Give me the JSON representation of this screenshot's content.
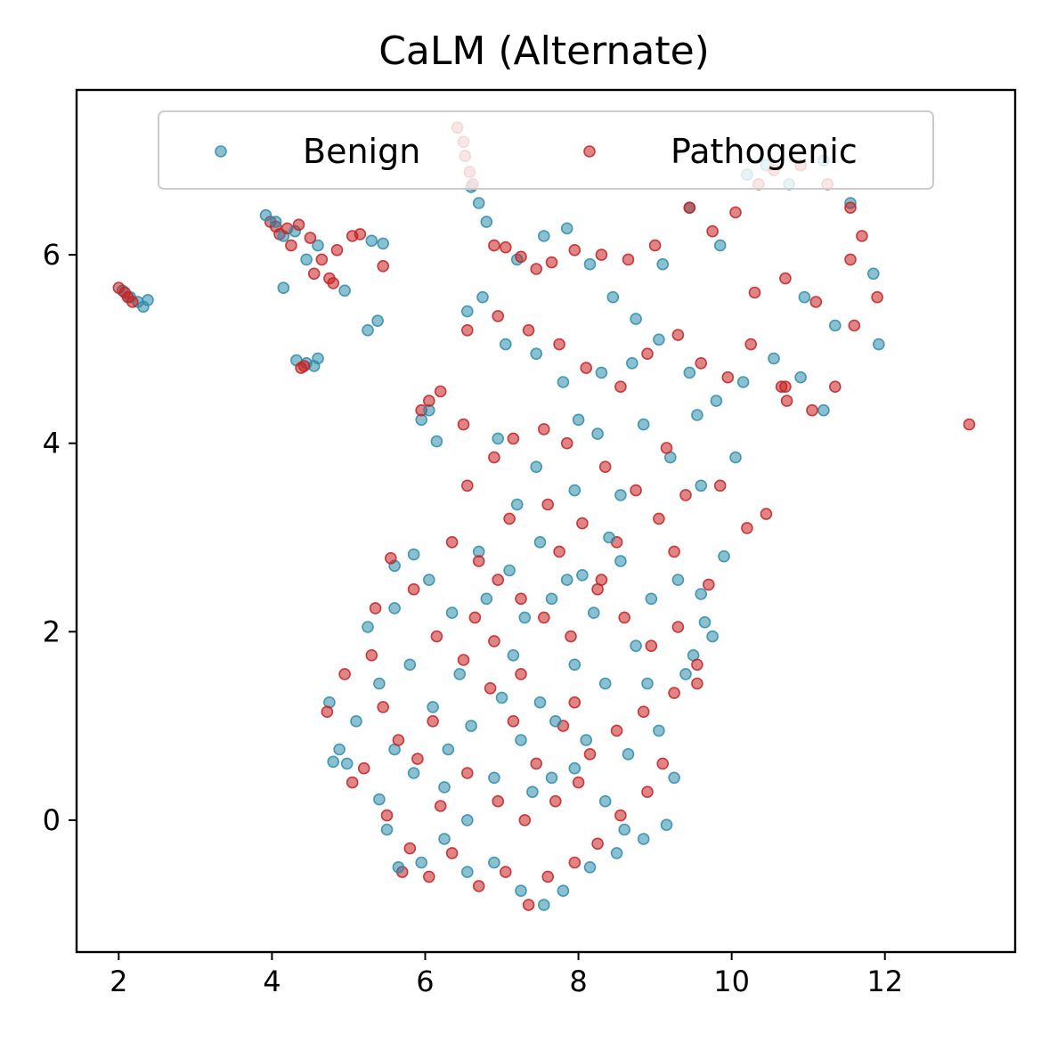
{
  "chart_data": {
    "type": "scatter",
    "title": "CaLM (Alternate)",
    "xlabel": "",
    "ylabel": "",
    "xlim": [
      1.45,
      13.7
    ],
    "ylim": [
      -1.4,
      7.75
    ],
    "xticks": [
      2,
      4,
      6,
      8,
      10,
      12
    ],
    "yticks": [
      0,
      2,
      4,
      6
    ],
    "grid": false,
    "legend_placement": "top-center",
    "series": [
      {
        "name": "Benign",
        "color": "#2b8cac",
        "points": [
          [
            2.05,
            5.62
          ],
          [
            2.15,
            5.55
          ],
          [
            2.25,
            5.5
          ],
          [
            2.32,
            5.45
          ],
          [
            2.38,
            5.52
          ],
          [
            3.92,
            6.42
          ],
          [
            4.05,
            6.35
          ],
          [
            4.15,
            6.2
          ],
          [
            4.3,
            6.25
          ],
          [
            4.45,
            5.95
          ],
          [
            4.6,
            6.1
          ],
          [
            4.15,
            5.65
          ],
          [
            4.95,
            5.62
          ],
          [
            5.3,
            6.15
          ],
          [
            5.25,
            5.2
          ],
          [
            5.38,
            5.3
          ],
          [
            5.45,
            6.12
          ],
          [
            4.32,
            4.88
          ],
          [
            4.45,
            4.85
          ],
          [
            4.6,
            4.9
          ],
          [
            4.55,
            4.82
          ],
          [
            5.95,
            4.25
          ],
          [
            6.05,
            4.35
          ],
          [
            6.15,
            4.02
          ],
          [
            6.6,
            6.72
          ],
          [
            6.7,
            6.55
          ],
          [
            6.8,
            6.35
          ],
          [
            6.55,
            5.4
          ],
          [
            6.75,
            5.55
          ],
          [
            7.2,
            5.95
          ],
          [
            7.55,
            6.2
          ],
          [
            7.85,
            6.28
          ],
          [
            8.15,
            5.9
          ],
          [
            8.45,
            5.55
          ],
          [
            8.75,
            5.32
          ],
          [
            9.1,
            5.9
          ],
          [
            9.45,
            6.5
          ],
          [
            9.85,
            6.1
          ],
          [
            10.2,
            6.85
          ],
          [
            10.45,
            6.95
          ],
          [
            10.75,
            6.75
          ],
          [
            11.2,
            7.0
          ],
          [
            11.55,
            6.55
          ],
          [
            11.85,
            5.8
          ],
          [
            11.92,
            5.05
          ],
          [
            11.35,
            5.25
          ],
          [
            10.95,
            5.55
          ],
          [
            7.05,
            5.05
          ],
          [
            7.45,
            4.95
          ],
          [
            7.8,
            4.65
          ],
          [
            8.0,
            4.25
          ],
          [
            8.3,
            4.75
          ],
          [
            8.7,
            4.85
          ],
          [
            9.05,
            5.1
          ],
          [
            9.45,
            4.75
          ],
          [
            9.8,
            4.45
          ],
          [
            10.15,
            4.65
          ],
          [
            10.55,
            4.9
          ],
          [
            10.9,
            4.7
          ],
          [
            11.2,
            4.35
          ],
          [
            9.2,
            3.85
          ],
          [
            9.6,
            3.55
          ],
          [
            10.05,
            3.85
          ],
          [
            8.55,
            3.45
          ],
          [
            7.95,
            3.5
          ],
          [
            7.2,
            3.35
          ],
          [
            6.95,
            4.05
          ],
          [
            7.45,
            3.75
          ],
          [
            8.25,
            4.1
          ],
          [
            8.85,
            4.2
          ],
          [
            9.55,
            4.3
          ],
          [
            6.7,
            2.85
          ],
          [
            7.1,
            2.65
          ],
          [
            7.5,
            2.95
          ],
          [
            7.85,
            2.55
          ],
          [
            8.2,
            2.2
          ],
          [
            8.55,
            2.75
          ],
          [
            8.95,
            2.35
          ],
          [
            9.3,
            2.55
          ],
          [
            9.65,
            2.1
          ],
          [
            9.75,
            1.95
          ],
          [
            9.5,
            1.75
          ],
          [
            8.75,
            1.85
          ],
          [
            8.35,
            1.45
          ],
          [
            7.95,
            1.65
          ],
          [
            7.5,
            1.25
          ],
          [
            7.15,
            1.75
          ],
          [
            6.8,
            2.35
          ],
          [
            6.35,
            2.2
          ],
          [
            6.05,
            2.55
          ],
          [
            5.85,
            2.82
          ],
          [
            5.6,
            2.7
          ],
          [
            5.25,
            2.05
          ],
          [
            5.4,
            1.45
          ],
          [
            5.1,
            1.05
          ],
          [
            4.88,
            0.75
          ],
          [
            4.8,
            0.62
          ],
          [
            4.75,
            1.25
          ],
          [
            4.98,
            0.6
          ],
          [
            5.6,
            0.75
          ],
          [
            5.85,
            0.5
          ],
          [
            6.25,
            0.35
          ],
          [
            6.55,
            0.0
          ],
          [
            6.9,
            0.45
          ],
          [
            7.25,
            0.85
          ],
          [
            7.65,
            0.45
          ],
          [
            7.95,
            0.55
          ],
          [
            8.35,
            0.2
          ],
          [
            8.65,
            0.7
          ],
          [
            9.05,
            0.95
          ],
          [
            9.25,
            0.45
          ],
          [
            9.15,
            -0.05
          ],
          [
            8.85,
            -0.2
          ],
          [
            8.5,
            -0.35
          ],
          [
            8.15,
            -0.5
          ],
          [
            7.8,
            -0.75
          ],
          [
            7.55,
            -0.9
          ],
          [
            7.25,
            -0.75
          ],
          [
            6.9,
            -0.45
          ],
          [
            6.55,
            -0.55
          ],
          [
            6.25,
            -0.2
          ],
          [
            5.95,
            -0.45
          ],
          [
            5.65,
            -0.5
          ],
          [
            5.5,
            -0.1
          ],
          [
            5.4,
            0.22
          ],
          [
            7.0,
            1.3
          ],
          [
            7.7,
            1.05
          ],
          [
            8.1,
            0.85
          ],
          [
            6.45,
            1.55
          ],
          [
            6.1,
            1.2
          ],
          [
            5.8,
            1.65
          ],
          [
            9.4,
            1.55
          ],
          [
            8.9,
            1.45
          ],
          [
            8.05,
            2.6
          ],
          [
            7.3,
            2.15
          ],
          [
            6.6,
            1.0
          ],
          [
            7.4,
            0.3
          ],
          [
            8.6,
            -0.1
          ],
          [
            6.3,
            0.75
          ],
          [
            5.6,
            2.25
          ],
          [
            9.6,
            2.4
          ],
          [
            9.9,
            2.8
          ],
          [
            8.4,
            3.0
          ],
          [
            7.65,
            2.35
          ]
        ]
      },
      {
        "name": "Pathogenic",
        "color": "#c62022",
        "points": [
          [
            2.0,
            5.65
          ],
          [
            2.08,
            5.6
          ],
          [
            2.12,
            5.55
          ],
          [
            2.18,
            5.5
          ],
          [
            3.98,
            6.35
          ],
          [
            4.05,
            6.3
          ],
          [
            4.1,
            6.22
          ],
          [
            4.2,
            6.28
          ],
          [
            4.25,
            6.1
          ],
          [
            4.35,
            6.32
          ],
          [
            4.5,
            6.18
          ],
          [
            4.65,
            5.95
          ],
          [
            4.75,
            5.75
          ],
          [
            4.85,
            6.05
          ],
          [
            5.05,
            6.2
          ],
          [
            5.15,
            6.22
          ],
          [
            4.55,
            5.8
          ],
          [
            4.8,
            5.7
          ],
          [
            5.45,
            5.88
          ],
          [
            4.38,
            4.8
          ],
          [
            4.42,
            4.82
          ],
          [
            5.95,
            4.35
          ],
          [
            6.05,
            4.45
          ],
          [
            6.2,
            4.55
          ],
          [
            6.5,
            4.2
          ],
          [
            6.42,
            7.35
          ],
          [
            6.5,
            7.2
          ],
          [
            6.52,
            7.05
          ],
          [
            6.58,
            6.88
          ],
          [
            6.62,
            6.75
          ],
          [
            6.9,
            6.1
          ],
          [
            7.05,
            6.08
          ],
          [
            7.25,
            5.98
          ],
          [
            7.45,
            5.85
          ],
          [
            7.65,
            5.92
          ],
          [
            7.95,
            6.05
          ],
          [
            8.3,
            6.0
          ],
          [
            8.65,
            5.95
          ],
          [
            9.0,
            6.1
          ],
          [
            9.45,
            6.5
          ],
          [
            9.75,
            6.25
          ],
          [
            10.05,
            6.45
          ],
          [
            10.35,
            6.75
          ],
          [
            10.55,
            6.9
          ],
          [
            10.9,
            6.95
          ],
          [
            11.25,
            6.75
          ],
          [
            11.55,
            6.5
          ],
          [
            11.7,
            6.2
          ],
          [
            11.55,
            5.95
          ],
          [
            11.9,
            5.55
          ],
          [
            11.6,
            5.25
          ],
          [
            11.1,
            5.5
          ],
          [
            10.7,
            5.75
          ],
          [
            10.3,
            5.6
          ],
          [
            6.55,
            5.2
          ],
          [
            6.95,
            5.35
          ],
          [
            7.35,
            5.2
          ],
          [
            7.75,
            5.05
          ],
          [
            8.1,
            4.8
          ],
          [
            8.55,
            4.6
          ],
          [
            8.9,
            4.95
          ],
          [
            9.3,
            5.15
          ],
          [
            9.6,
            4.85
          ],
          [
            9.95,
            4.7
          ],
          [
            10.25,
            5.05
          ],
          [
            10.65,
            4.6
          ],
          [
            10.72,
            4.45
          ],
          [
            11.05,
            4.35
          ],
          [
            11.35,
            4.6
          ],
          [
            10.45,
            3.25
          ],
          [
            10.2,
            3.1
          ],
          [
            9.85,
            3.55
          ],
          [
            9.4,
            3.45
          ],
          [
            9.05,
            3.2
          ],
          [
            8.75,
            3.5
          ],
          [
            8.35,
            3.75
          ],
          [
            7.85,
            4.0
          ],
          [
            7.55,
            4.15
          ],
          [
            7.15,
            4.05
          ],
          [
            6.9,
            3.85
          ],
          [
            6.55,
            3.55
          ],
          [
            7.1,
            3.2
          ],
          [
            7.6,
            3.35
          ],
          [
            8.05,
            3.15
          ],
          [
            8.5,
            2.95
          ],
          [
            9.25,
            2.85
          ],
          [
            9.7,
            2.5
          ],
          [
            6.35,
            2.95
          ],
          [
            6.7,
            2.75
          ],
          [
            6.95,
            2.55
          ],
          [
            7.25,
            2.35
          ],
          [
            7.55,
            2.15
          ],
          [
            7.9,
            1.95
          ],
          [
            8.25,
            2.45
          ],
          [
            8.6,
            2.15
          ],
          [
            8.95,
            1.85
          ],
          [
            9.3,
            2.05
          ],
          [
            9.55,
            1.65
          ],
          [
            9.25,
            1.35
          ],
          [
            8.85,
            1.15
          ],
          [
            8.5,
            0.95
          ],
          [
            8.15,
            0.7
          ],
          [
            7.8,
            1.0
          ],
          [
            7.45,
            0.6
          ],
          [
            7.15,
            1.05
          ],
          [
            6.85,
            1.4
          ],
          [
            6.5,
            1.7
          ],
          [
            6.15,
            1.95
          ],
          [
            5.85,
            2.45
          ],
          [
            5.55,
            2.78
          ],
          [
            5.35,
            2.25
          ],
          [
            5.3,
            1.75
          ],
          [
            5.45,
            1.2
          ],
          [
            5.65,
            0.85
          ],
          [
            5.2,
            0.55
          ],
          [
            4.72,
            1.15
          ],
          [
            4.95,
            1.55
          ],
          [
            5.05,
            0.4
          ],
          [
            5.5,
            0.05
          ],
          [
            5.8,
            -0.3
          ],
          [
            5.7,
            -0.55
          ],
          [
            6.05,
            -0.6
          ],
          [
            6.35,
            -0.35
          ],
          [
            6.7,
            -0.7
          ],
          [
            7.05,
            -0.55
          ],
          [
            7.35,
            -0.9
          ],
          [
            7.6,
            -0.6
          ],
          [
            7.95,
            -0.45
          ],
          [
            8.25,
            -0.25
          ],
          [
            8.55,
            0.05
          ],
          [
            8.9,
            0.3
          ],
          [
            9.1,
            0.6
          ],
          [
            6.2,
            0.15
          ],
          [
            6.55,
            0.5
          ],
          [
            6.95,
            0.2
          ],
          [
            7.3,
            0.0
          ],
          [
            7.7,
            0.2
          ],
          [
            8.0,
            0.4
          ],
          [
            7.95,
            1.25
          ],
          [
            7.25,
            1.55
          ],
          [
            6.65,
            2.15
          ],
          [
            6.1,
            1.05
          ],
          [
            5.9,
            0.65
          ],
          [
            9.15,
            3.95
          ],
          [
            10.7,
            4.6
          ],
          [
            13.1,
            4.2
          ],
          [
            9.55,
            1.45
          ],
          [
            8.3,
            2.55
          ],
          [
            7.75,
            2.85
          ],
          [
            6.9,
            1.9
          ]
        ]
      }
    ]
  }
}
